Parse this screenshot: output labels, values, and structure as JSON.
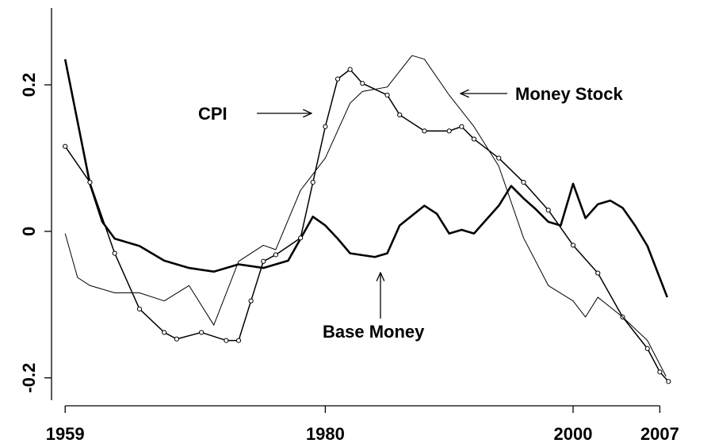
{
  "chart_data": {
    "type": "line",
    "annotations": [
      "CPI",
      "Money Stock",
      "Base Money"
    ],
    "xlim": [
      1957.9,
      2010.3
    ],
    "xticks": [
      1959,
      1980,
      2000,
      2007
    ],
    "ylim": [
      -0.236,
      0.305
    ],
    "yticks": [
      -0.2,
      0,
      0.2
    ],
    "grid": false,
    "series": [
      {
        "name": "Base Money",
        "color": "#000000",
        "line_width": 2.6,
        "marker": "none",
        "x": [
          1959,
          1960,
          1961,
          1962,
          1963,
          1965,
          1967,
          1969,
          1971,
          1973,
          1975,
          1977,
          1978,
          1979,
          1980,
          1981,
          1982,
          1984,
          1985,
          1986,
          1988,
          1989,
          1990,
          1991,
          1992,
          1994,
          1995,
          1996,
          1997,
          1998,
          1999,
          2000,
          2001,
          2002,
          2003,
          2004,
          2005,
          2006,
          2007.6
        ],
        "values": [
          0.235,
          0.15,
          0.065,
          0.013,
          -0.01,
          -0.02,
          -0.04,
          -0.05,
          -0.055,
          -0.045,
          -0.05,
          -0.04,
          -0.01,
          0.02,
          0.008,
          -0.01,
          -0.03,
          -0.035,
          -0.03,
          0.008,
          0.035,
          0.024,
          -0.003,
          0.002,
          -0.003,
          0.035,
          0.062,
          0.045,
          0.03,
          0.013,
          0.008,
          0.065,
          0.018,
          0.037,
          0.042,
          0.032,
          0.008,
          -0.02,
          -0.09
        ]
      },
      {
        "name": "CPI",
        "color": "#000000",
        "line_width": 1.5,
        "marker": "circle",
        "x": [
          1959,
          1961,
          1963,
          1965,
          1967,
          1968,
          1970,
          1972,
          1973,
          1974,
          1975,
          1976,
          1978,
          1979,
          1980,
          1981,
          1982,
          1983,
          1985,
          1986,
          1988,
          1990,
          1991,
          1992,
          1994,
          1996,
          1998,
          2000,
          2002,
          2004,
          2006,
          2007,
          2007.7
        ],
        "values": [
          0.116,
          0.067,
          -0.03,
          -0.106,
          -0.138,
          -0.147,
          -0.138,
          -0.149,
          -0.149,
          -0.095,
          -0.041,
          -0.032,
          -0.009,
          0.067,
          0.143,
          0.208,
          0.221,
          0.202,
          0.186,
          0.159,
          0.137,
          0.137,
          0.143,
          0.126,
          0.1,
          0.067,
          0.029,
          -0.019,
          -0.057,
          -0.117,
          -0.16,
          -0.192,
          -0.205
        ]
      },
      {
        "name": "Money Stock",
        "color": "#000000",
        "line_width": 1,
        "marker": "none",
        "x": [
          1959,
          1960,
          1961,
          1963,
          1965,
          1967,
          1969,
          1971,
          1973,
          1975,
          1976,
          1978,
          1980,
          1982,
          1983,
          1985,
          1987,
          1988,
          1990,
          1992,
          1994,
          1996,
          1998,
          2000,
          2001,
          2002,
          2004,
          2006,
          2007.5
        ],
        "values": [
          -0.003,
          -0.063,
          -0.074,
          -0.084,
          -0.084,
          -0.095,
          -0.074,
          -0.128,
          -0.041,
          -0.019,
          -0.025,
          0.056,
          0.1,
          0.175,
          0.191,
          0.197,
          0.24,
          0.235,
          0.186,
          0.143,
          0.089,
          -0.009,
          -0.074,
          -0.095,
          -0.117,
          -0.09,
          -0.117,
          -0.149,
          -0.198
        ]
      }
    ]
  }
}
